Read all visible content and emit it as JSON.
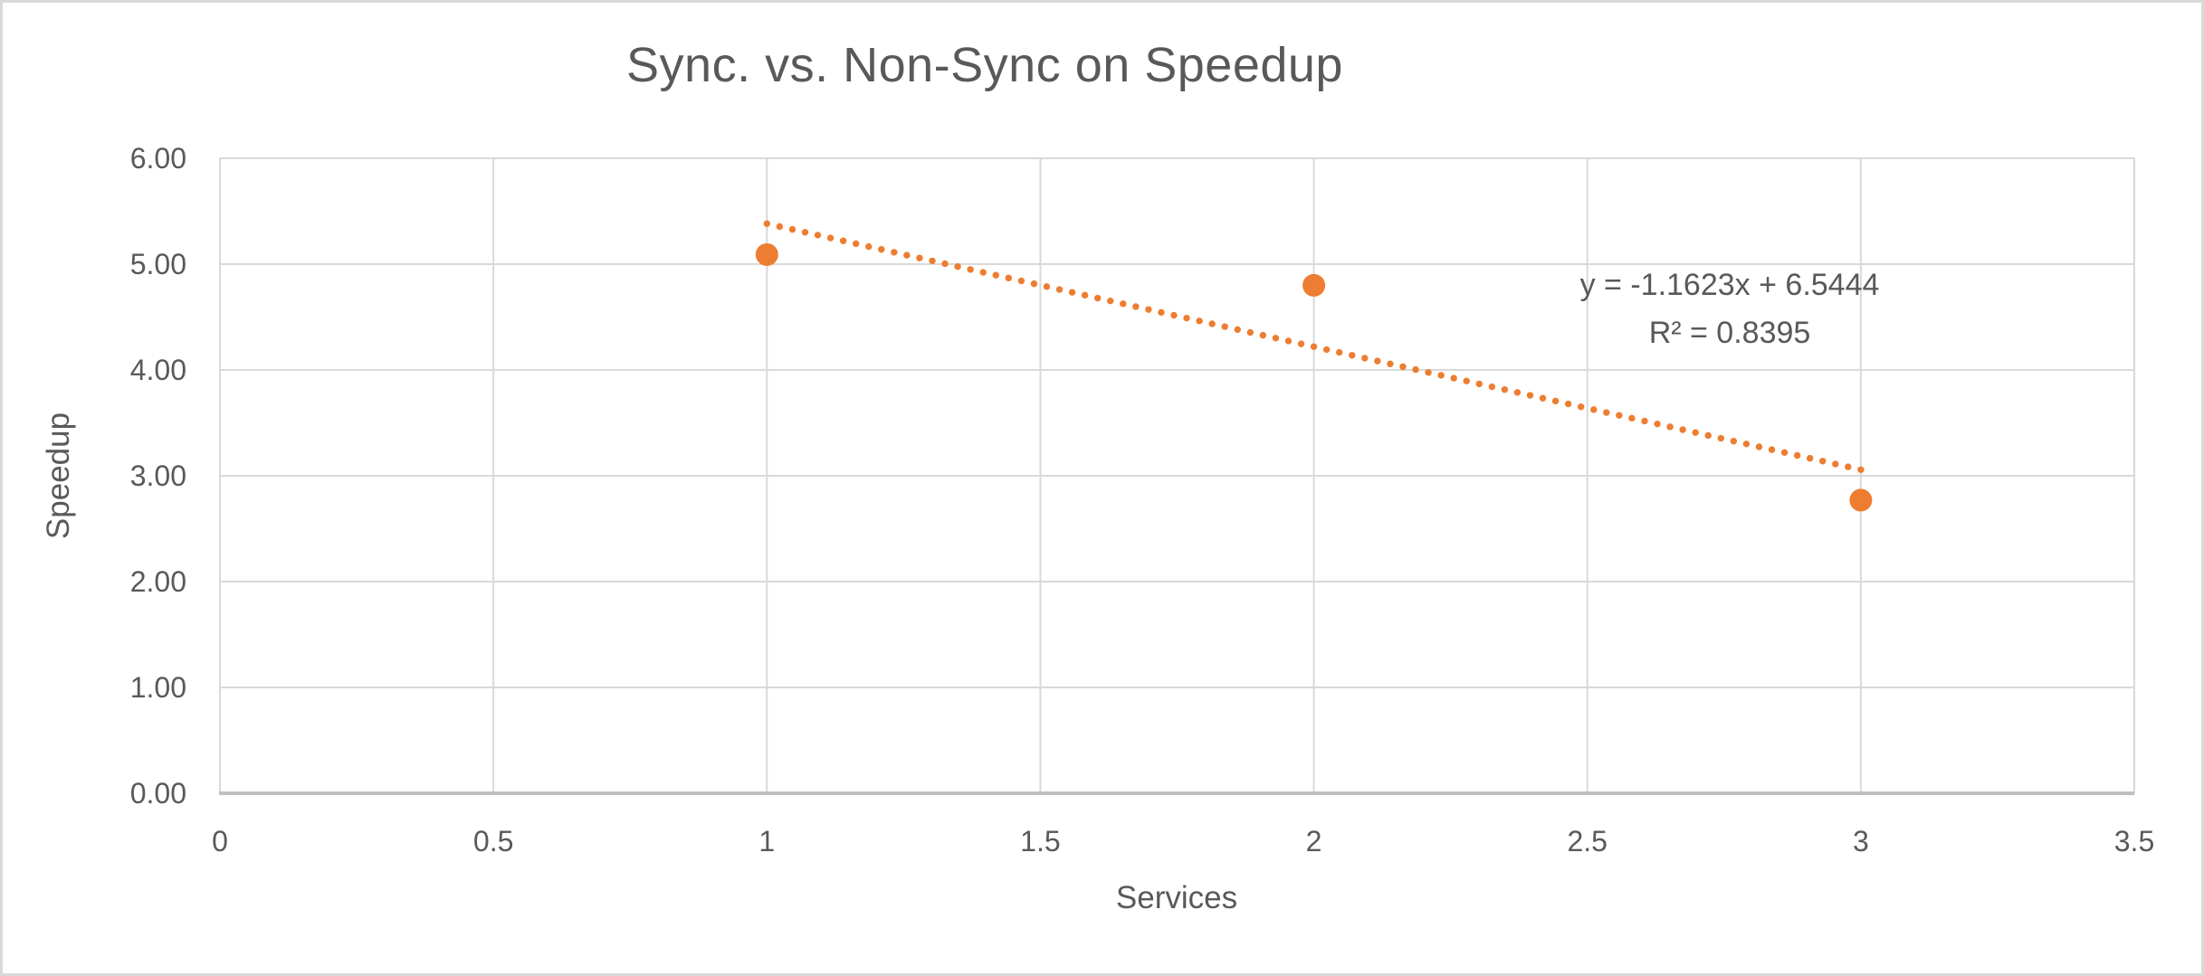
{
  "chart_data": {
    "type": "scatter",
    "title": "Sync. vs. Non-Sync on Speedup",
    "xlabel": "Services",
    "ylabel": "Speedup",
    "x": [
      1,
      2,
      3
    ],
    "y": [
      5.09,
      4.8,
      2.77
    ],
    "xlim": [
      0,
      3.5
    ],
    "ylim": [
      0,
      6
    ],
    "x_ticks": [
      "0",
      "0.5",
      "1",
      "1.5",
      "2",
      "2.5",
      "3",
      "3.5"
    ],
    "y_ticks": [
      "0.00",
      "1.00",
      "2.00",
      "3.00",
      "4.00",
      "5.00",
      "6.00"
    ],
    "grid": true,
    "legend": "none",
    "marker_color": "#ED7D31",
    "trendline": {
      "type": "linear",
      "slope": -1.1623,
      "intercept": 6.5444,
      "x_range": [
        1,
        3
      ],
      "style": "round-dot",
      "color": "#ED7D31",
      "equation_label": "y = -1.1623x + 6.5444",
      "r_squared_label": "R² = 0.8395",
      "r_squared": 0.8395
    },
    "colors": {
      "text": "#595959",
      "gridline": "#D9D9D9",
      "axis_line": "#BFBFBF",
      "background": "#FFFFFF",
      "border": "#D9D9D9"
    }
  }
}
